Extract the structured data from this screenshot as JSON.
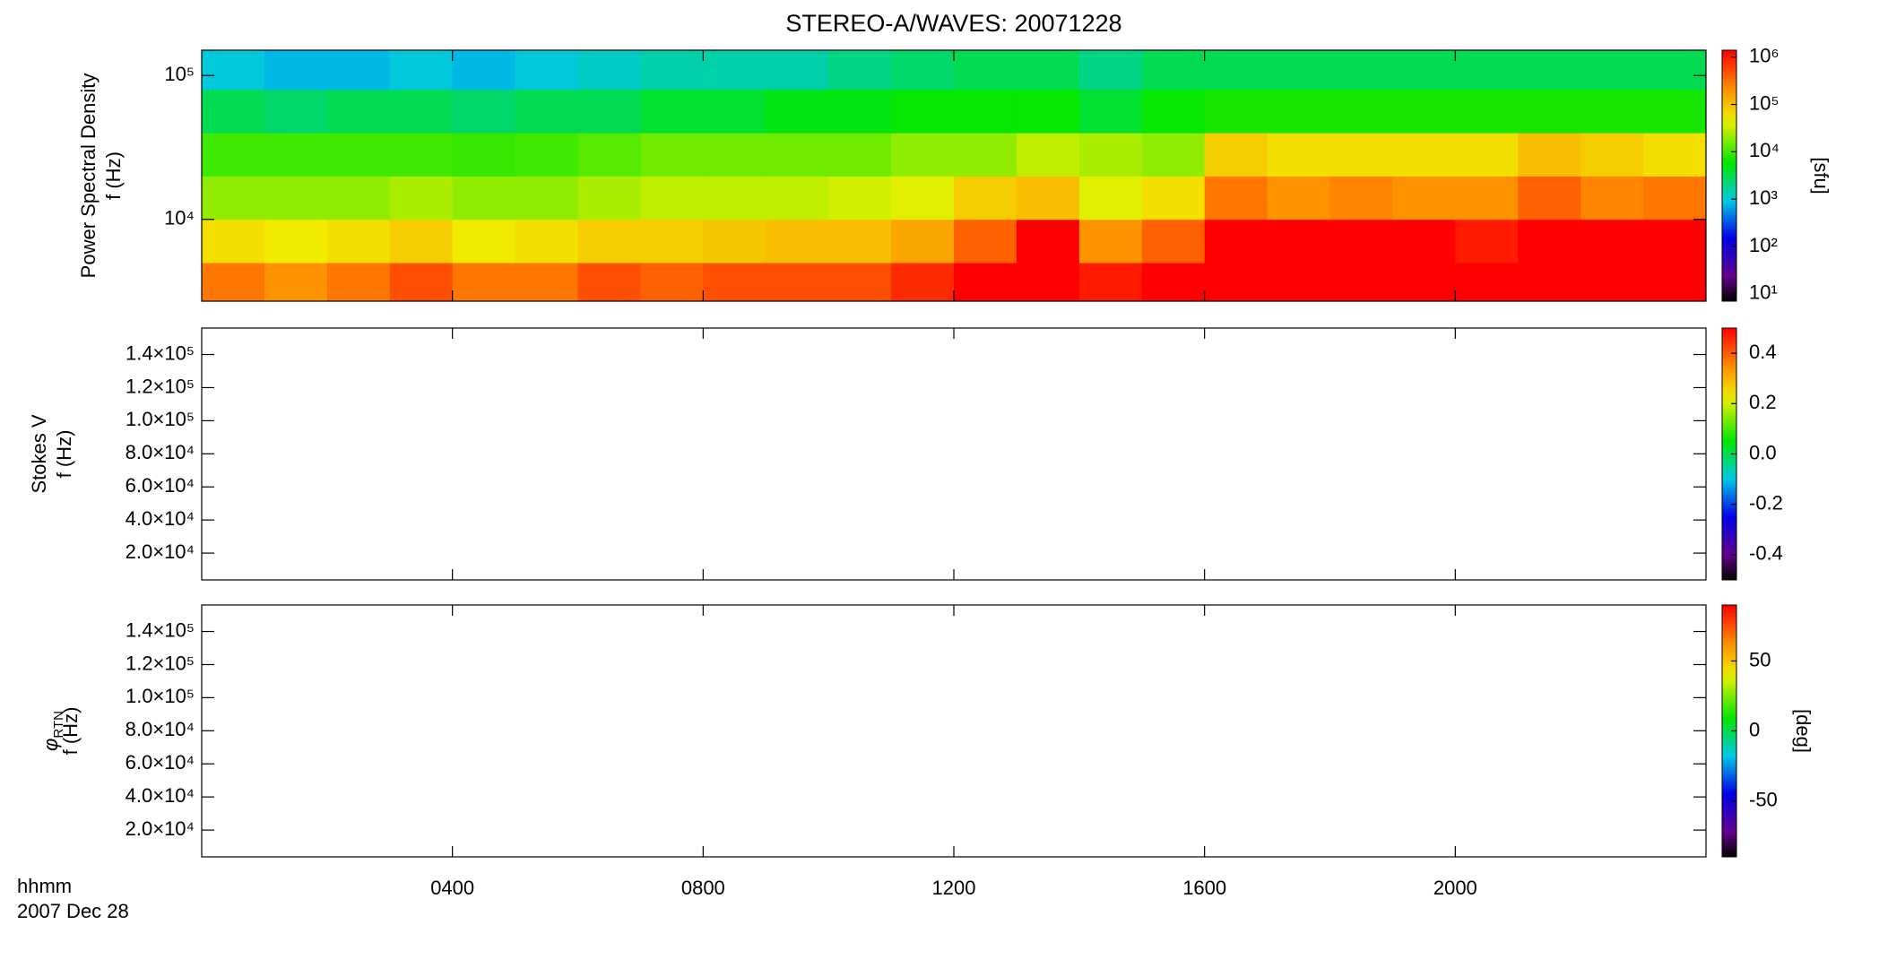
{
  "chart_data": [
    {
      "type": "heatmap",
      "title": "STEREO-A/WAVES: 20071228",
      "ylabel_top": "Power Spectral Density",
      "ylabel": "f (Hz)",
      "ylog": true,
      "ylim": [
        2700,
        150000
      ],
      "yticks": [
        {
          "value": 10000,
          "label": "10⁴"
        },
        {
          "value": 100000,
          "label": "10⁵"
        }
      ],
      "xbins": [
        0,
        1,
        2,
        3,
        4,
        5,
        6,
        7,
        8,
        9,
        10,
        11,
        12,
        13,
        14,
        15,
        16,
        17,
        18,
        19,
        20,
        21,
        22,
        23,
        24
      ],
      "ybins": [
        2700,
        5000,
        10000,
        20000,
        40000,
        80000,
        150000
      ],
      "z": [
        [
          300000,
          200000,
          300000,
          500000,
          300000,
          300000,
          500000,
          400000,
          500000,
          500000,
          500000,
          800000,
          1400000,
          1400000,
          1000000,
          1400000,
          1400000,
          1400000,
          1400000,
          1400000,
          1400000,
          1400000,
          1400000,
          1400000
        ],
        [
          60000,
          50000,
          60000,
          80000,
          50000,
          60000,
          80000,
          80000,
          90000,
          100000,
          100000,
          150000,
          400000,
          1400000,
          200000,
          400000,
          1400000,
          1400000,
          1400000,
          1400000,
          1000000,
          1400000,
          1400000,
          1400000
        ],
        [
          20000,
          20000,
          20000,
          25000,
          20000,
          20000,
          25000,
          30000,
          30000,
          30000,
          35000,
          40000,
          80000,
          100000,
          40000,
          60000,
          300000,
          200000,
          250000,
          200000,
          200000,
          400000,
          250000,
          300000
        ],
        [
          10000,
          10000,
          10000,
          10000,
          9000,
          10000,
          12000,
          15000,
          15000,
          15000,
          15000,
          20000,
          20000,
          30000,
          25000,
          20000,
          80000,
          60000,
          60000,
          60000,
          60000,
          100000,
          80000,
          60000
        ],
        [
          3000,
          2500,
          3000,
          3000,
          2500,
          3000,
          3000,
          4000,
          4000,
          5000,
          5000,
          6000,
          6000,
          6000,
          4000,
          6000,
          7000,
          7000,
          7000,
          7000,
          7000,
          7000,
          7000,
          7000
        ],
        [
          1000,
          800,
          800,
          1000,
          800,
          1000,
          1200,
          1500,
          1500,
          1500,
          2000,
          2500,
          3000,
          3000,
          2000,
          3000,
          3000,
          3000,
          3000,
          3000,
          3000,
          3000,
          3000,
          3000
        ]
      ],
      "colormap": "rainbow",
      "zlog": true,
      "zlim": [
        7,
        1400000
      ],
      "zlabel": "[sfu]",
      "zticks": [
        {
          "value": 10,
          "label": "10¹"
        },
        {
          "value": 100,
          "label": "10²"
        },
        {
          "value": 1000,
          "label": "10³"
        },
        {
          "value": 10000,
          "label": "10⁴"
        },
        {
          "value": 100000,
          "label": "10⁵"
        },
        {
          "value": 1000000,
          "label": "10⁶"
        }
      ]
    },
    {
      "type": "heatmap",
      "ylabel_top": "Stokes V",
      "ylabel": "f (Hz)",
      "ylog": false,
      "ylim": [
        3800,
        156000
      ],
      "yticks": [
        {
          "value": 20000,
          "label": "2.0×10⁴"
        },
        {
          "value": 40000,
          "label": "4.0×10⁴"
        },
        {
          "value": 60000,
          "label": "6.0×10⁴"
        },
        {
          "value": 80000,
          "label": "8.0×10⁴"
        },
        {
          "value": 100000,
          "label": "1.0×10⁵"
        },
        {
          "value": 120000,
          "label": "1.2×10⁵"
        },
        {
          "value": 140000,
          "label": "1.4×10⁵"
        }
      ],
      "colormap": "rainbow",
      "zlog": false,
      "zlim": [
        -0.5,
        0.5
      ],
      "zticks": [
        -0.4,
        -0.2,
        {
          "value": 0,
          "label": "0.0"
        },
        0.2,
        0.4
      ]
    },
    {
      "type": "heatmap",
      "ylabel_top": "φ",
      "ylabel_sub": "RTN",
      "ylabel": "f (Hz)",
      "ylog": false,
      "ylim": [
        3800,
        156000
      ],
      "yticks": [
        {
          "value": 20000,
          "label": "2.0×10⁴"
        },
        {
          "value": 40000,
          "label": "4.0×10⁴"
        },
        {
          "value": 60000,
          "label": "6.0×10⁴"
        },
        {
          "value": 80000,
          "label": "8.0×10⁴"
        },
        {
          "value": 100000,
          "label": "1.0×10⁵"
        },
        {
          "value": 120000,
          "label": "1.2×10⁵"
        },
        {
          "value": 140000,
          "label": "1.4×10⁵"
        }
      ],
      "colormap": "rainbow",
      "zlog": false,
      "zlim": [
        -90,
        90
      ],
      "zlabel": "[deg]",
      "zticks": [
        -50,
        0,
        50
      ],
      "xlabel": "hhmm",
      "date": "2007 Dec 28",
      "xlim": [
        0,
        24
      ],
      "xticks": [
        {
          "value": 4,
          "label": "0400"
        },
        {
          "value": 8,
          "label": "0800"
        },
        {
          "value": 12,
          "label": "1200"
        },
        {
          "value": 16,
          "label": "1600"
        },
        {
          "value": 20,
          "label": "2000"
        }
      ]
    }
  ]
}
